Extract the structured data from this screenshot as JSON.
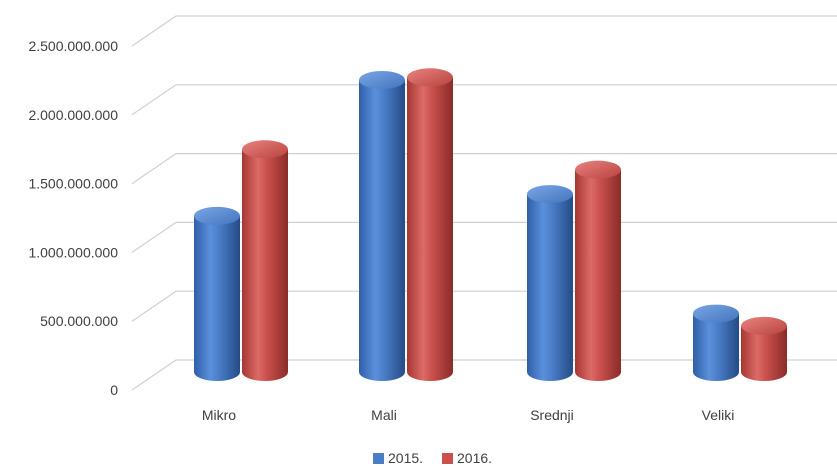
{
  "chart_data": {
    "type": "bar",
    "title": "",
    "xlabel": "",
    "ylabel": "",
    "categories": [
      "Mikro",
      "Mali",
      "Srednji",
      "Veliki"
    ],
    "series": [
      {
        "name": "2015.",
        "color": "#4a7dc7",
        "values": [
          1150000000,
          2150000000,
          1310000000,
          430000000
        ]
      },
      {
        "name": "2016.",
        "color": "#c9504c",
        "values": [
          1640000000,
          2170000000,
          1490000000,
          340000000
        ]
      }
    ],
    "yticks": [
      "0",
      "500.000.000",
      "1.000.000.000",
      "1.500.000.000",
      "2.000.000.000",
      "2.500.000.000"
    ],
    "ylim": [
      0,
      2500000000
    ],
    "grid": true,
    "legend": "bottom",
    "style": "3d-cylinder"
  }
}
